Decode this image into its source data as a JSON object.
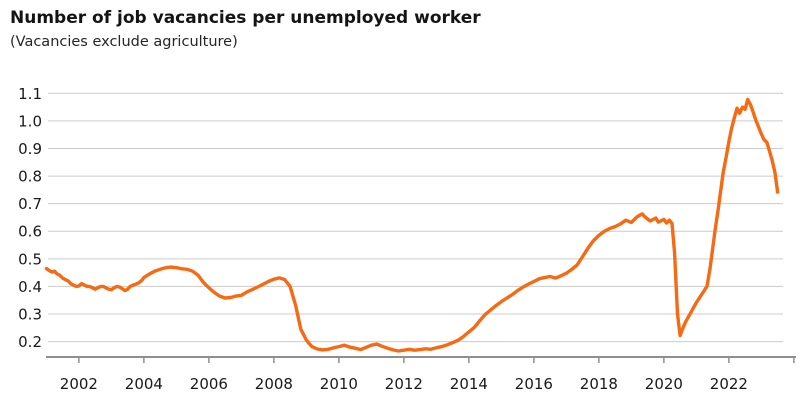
{
  "header": {
    "title": "Number of job vacancies per unemployed worker",
    "subtitle": "(Vacancies exclude agriculture)"
  },
  "colors": {
    "line": "#F56A13",
    "grid": "#cccccc",
    "axis": "#8f8f8f",
    "text": "#1a1a1a"
  },
  "chart_data": {
    "type": "line",
    "title": "Number of job vacancies per unemployed worker",
    "subtitle": "(Vacancies exclude agriculture)",
    "xlabel": "",
    "ylabel": "",
    "grid": "horizontal",
    "legend": "none",
    "xlim": [
      2001.05,
      2024.05
    ],
    "ylim": [
      0.2,
      1.1
    ],
    "x_ticks": [
      {
        "v": 2002,
        "label": "2002"
      },
      {
        "v": 2004,
        "label": "2004"
      },
      {
        "v": 2006,
        "label": "2006"
      },
      {
        "v": 2008,
        "label": "2008"
      },
      {
        "v": 2010,
        "label": "2010"
      },
      {
        "v": 2012,
        "label": "2012"
      },
      {
        "v": 2014,
        "label": "2014"
      },
      {
        "v": 2016,
        "label": "2016"
      },
      {
        "v": 2018,
        "label": "2018"
      },
      {
        "v": 2020,
        "label": "2020"
      },
      {
        "v": 2022,
        "label": "2022"
      },
      {
        "v": 2024,
        "label": ""
      }
    ],
    "y_ticks": [
      {
        "v": 0.2,
        "label": "0.2"
      },
      {
        "v": 0.3,
        "label": "0.3"
      },
      {
        "v": 0.4,
        "label": "0.4"
      },
      {
        "v": 0.5,
        "label": "0.5"
      },
      {
        "v": 0.6,
        "label": "0.6"
      },
      {
        "v": 0.7,
        "label": "0.7"
      },
      {
        "v": 0.8,
        "label": "0.8"
      },
      {
        "v": 0.9,
        "label": "0.9"
      },
      {
        "v": 1.0,
        "label": "1.0"
      },
      {
        "v": 1.1,
        "label": "1.1"
      }
    ],
    "series": [
      {
        "name": "Job vacancies per unemployed worker",
        "color": "#F56A13",
        "points": [
          [
            2001.0,
            0.465
          ],
          [
            2001.08,
            0.458
          ],
          [
            2001.17,
            0.452
          ],
          [
            2001.25,
            0.455
          ],
          [
            2001.33,
            0.445
          ],
          [
            2001.42,
            0.44
          ],
          [
            2001.5,
            0.43
          ],
          [
            2001.58,
            0.425
          ],
          [
            2001.67,
            0.42
          ],
          [
            2001.75,
            0.41
          ],
          [
            2001.83,
            0.405
          ],
          [
            2001.92,
            0.4
          ],
          [
            2002.0,
            0.402
          ],
          [
            2002.08,
            0.41
          ],
          [
            2002.17,
            0.405
          ],
          [
            2002.25,
            0.4
          ],
          [
            2002.33,
            0.4
          ],
          [
            2002.42,
            0.395
          ],
          [
            2002.5,
            0.39
          ],
          [
            2002.58,
            0.395
          ],
          [
            2002.67,
            0.4
          ],
          [
            2002.75,
            0.4
          ],
          [
            2002.83,
            0.395
          ],
          [
            2002.92,
            0.39
          ],
          [
            2003.0,
            0.388
          ],
          [
            2003.08,
            0.395
          ],
          [
            2003.17,
            0.4
          ],
          [
            2003.25,
            0.398
          ],
          [
            2003.33,
            0.392
          ],
          [
            2003.42,
            0.385
          ],
          [
            2003.5,
            0.39
          ],
          [
            2003.58,
            0.4
          ],
          [
            2003.67,
            0.405
          ],
          [
            2003.75,
            0.408
          ],
          [
            2003.83,
            0.412
          ],
          [
            2003.92,
            0.42
          ],
          [
            2004.0,
            0.432
          ],
          [
            2004.17,
            0.445
          ],
          [
            2004.33,
            0.455
          ],
          [
            2004.5,
            0.462
          ],
          [
            2004.67,
            0.468
          ],
          [
            2004.83,
            0.47
          ],
          [
            2005.0,
            0.468
          ],
          [
            2005.17,
            0.464
          ],
          [
            2005.33,
            0.462
          ],
          [
            2005.5,
            0.455
          ],
          [
            2005.67,
            0.44
          ],
          [
            2005.83,
            0.415
          ],
          [
            2006.0,
            0.395
          ],
          [
            2006.17,
            0.378
          ],
          [
            2006.33,
            0.365
          ],
          [
            2006.5,
            0.358
          ],
          [
            2006.67,
            0.36
          ],
          [
            2006.83,
            0.365
          ],
          [
            2007.0,
            0.368
          ],
          [
            2007.17,
            0.38
          ],
          [
            2007.33,
            0.388
          ],
          [
            2007.5,
            0.398
          ],
          [
            2007.67,
            0.408
          ],
          [
            2007.83,
            0.418
          ],
          [
            2008.0,
            0.426
          ],
          [
            2008.17,
            0.431
          ],
          [
            2008.33,
            0.425
          ],
          [
            2008.5,
            0.4
          ],
          [
            2008.67,
            0.33
          ],
          [
            2008.83,
            0.245
          ],
          [
            2009.0,
            0.205
          ],
          [
            2009.17,
            0.182
          ],
          [
            2009.33,
            0.173
          ],
          [
            2009.5,
            0.17
          ],
          [
            2009.67,
            0.172
          ],
          [
            2009.83,
            0.177
          ],
          [
            2010.0,
            0.182
          ],
          [
            2010.17,
            0.187
          ],
          [
            2010.33,
            0.18
          ],
          [
            2010.5,
            0.176
          ],
          [
            2010.67,
            0.171
          ],
          [
            2010.83,
            0.179
          ],
          [
            2011.0,
            0.187
          ],
          [
            2011.17,
            0.191
          ],
          [
            2011.33,
            0.183
          ],
          [
            2011.5,
            0.176
          ],
          [
            2011.67,
            0.17
          ],
          [
            2011.83,
            0.166
          ],
          [
            2012.0,
            0.169
          ],
          [
            2012.17,
            0.172
          ],
          [
            2012.33,
            0.169
          ],
          [
            2012.5,
            0.171
          ],
          [
            2012.67,
            0.174
          ],
          [
            2012.83,
            0.172
          ],
          [
            2013.0,
            0.178
          ],
          [
            2013.17,
            0.182
          ],
          [
            2013.33,
            0.188
          ],
          [
            2013.5,
            0.196
          ],
          [
            2013.67,
            0.205
          ],
          [
            2013.83,
            0.218
          ],
          [
            2014.0,
            0.235
          ],
          [
            2014.17,
            0.252
          ],
          [
            2014.33,
            0.275
          ],
          [
            2014.5,
            0.298
          ],
          [
            2014.67,
            0.315
          ],
          [
            2014.83,
            0.33
          ],
          [
            2015.0,
            0.345
          ],
          [
            2015.17,
            0.358
          ],
          [
            2015.33,
            0.37
          ],
          [
            2015.5,
            0.385
          ],
          [
            2015.67,
            0.398
          ],
          [
            2015.83,
            0.408
          ],
          [
            2016.0,
            0.418
          ],
          [
            2016.17,
            0.428
          ],
          [
            2016.33,
            0.432
          ],
          [
            2016.5,
            0.436
          ],
          [
            2016.67,
            0.43
          ],
          [
            2016.83,
            0.438
          ],
          [
            2017.0,
            0.448
          ],
          [
            2017.17,
            0.462
          ],
          [
            2017.33,
            0.478
          ],
          [
            2017.5,
            0.508
          ],
          [
            2017.67,
            0.54
          ],
          [
            2017.83,
            0.565
          ],
          [
            2018.0,
            0.585
          ],
          [
            2018.17,
            0.6
          ],
          [
            2018.33,
            0.61
          ],
          [
            2018.5,
            0.617
          ],
          [
            2018.67,
            0.627
          ],
          [
            2018.83,
            0.64
          ],
          [
            2019.0,
            0.632
          ],
          [
            2019.17,
            0.652
          ],
          [
            2019.33,
            0.663
          ],
          [
            2019.42,
            0.652
          ],
          [
            2019.58,
            0.637
          ],
          [
            2019.75,
            0.648
          ],
          [
            2019.83,
            0.633
          ],
          [
            2020.0,
            0.643
          ],
          [
            2020.08,
            0.63
          ],
          [
            2020.17,
            0.64
          ],
          [
            2020.25,
            0.628
          ],
          [
            2020.33,
            0.52
          ],
          [
            2020.42,
            0.3
          ],
          [
            2020.5,
            0.222
          ],
          [
            2020.58,
            0.248
          ],
          [
            2020.67,
            0.272
          ],
          [
            2020.83,
            0.305
          ],
          [
            2021.0,
            0.342
          ],
          [
            2021.08,
            0.356
          ],
          [
            2021.17,
            0.372
          ],
          [
            2021.25,
            0.386
          ],
          [
            2021.33,
            0.402
          ],
          [
            2021.42,
            0.465
          ],
          [
            2021.5,
            0.535
          ],
          [
            2021.58,
            0.607
          ],
          [
            2021.67,
            0.68
          ],
          [
            2021.75,
            0.75
          ],
          [
            2021.83,
            0.815
          ],
          [
            2021.92,
            0.872
          ],
          [
            2022.0,
            0.925
          ],
          [
            2022.08,
            0.972
          ],
          [
            2022.17,
            1.012
          ],
          [
            2022.25,
            1.046
          ],
          [
            2022.33,
            1.028
          ],
          [
            2022.42,
            1.05
          ],
          [
            2022.5,
            1.042
          ],
          [
            2022.58,
            1.078
          ],
          [
            2022.67,
            1.057
          ],
          [
            2022.75,
            1.03
          ],
          [
            2022.83,
            1.003
          ],
          [
            2022.92,
            0.976
          ],
          [
            2023.0,
            0.952
          ],
          [
            2023.08,
            0.932
          ],
          [
            2023.17,
            0.922
          ],
          [
            2023.25,
            0.89
          ],
          [
            2023.33,
            0.858
          ],
          [
            2023.42,
            0.812
          ],
          [
            2023.5,
            0.742
          ]
        ]
      }
    ]
  }
}
